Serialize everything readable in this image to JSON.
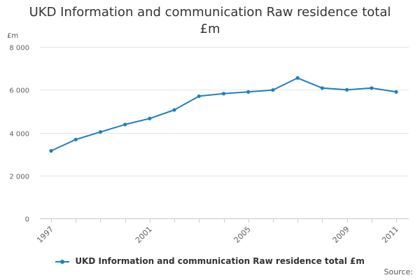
{
  "chart_data": {
    "type": "line",
    "title_line1": "UKD Information and communication Raw residence total",
    "title_line2": "£m",
    "ylabel": "£m",
    "xlabel": "",
    "x": [
      1997,
      1998,
      1999,
      2000,
      2001,
      2002,
      2003,
      2004,
      2005,
      2006,
      2007,
      2008,
      2009,
      2010,
      2011
    ],
    "series": [
      {
        "name": "UKD Information and communication Raw residence total £m",
        "color": "#1f7fc0",
        "values": [
          3150,
          3680,
          4030,
          4380,
          4660,
          5060,
          5700,
          5820,
          5900,
          5990,
          6550,
          6080,
          6000,
          6080,
          5900
        ]
      }
    ],
    "ylim": [
      0,
      8000
    ],
    "yticks": [
      0,
      2000,
      4000,
      6000,
      8000
    ],
    "ytick_labels": [
      "0",
      "2 000",
      "4 000",
      "6 000",
      "8 000"
    ],
    "xticks": [
      1997,
      2001,
      2005,
      2009,
      2011
    ],
    "xtick_labels": [
      "1997",
      "2001",
      "2005",
      "2009",
      "2011"
    ],
    "grid": true,
    "legend_position": "bottom-center"
  },
  "credits": "Source:"
}
